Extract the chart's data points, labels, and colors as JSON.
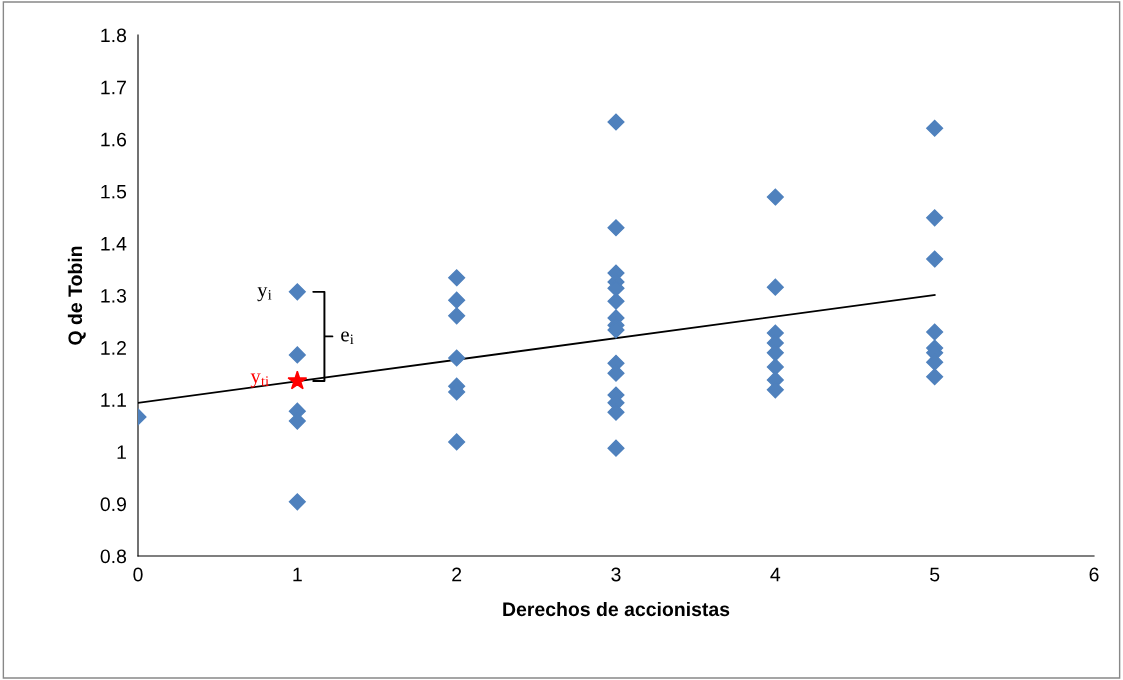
{
  "chart_data": {
    "type": "scatter",
    "xlabel": "Derechos de accionistas",
    "ylabel": "Q de Tobin",
    "xlim": [
      0,
      6
    ],
    "xticks": [
      0,
      1,
      2,
      3,
      4,
      5,
      6
    ],
    "ylim": [
      0.8,
      1.8
    ],
    "yticks": [
      0.8,
      0.9,
      1,
      1.1,
      1.2,
      1.3,
      1.4,
      1.5,
      1.6,
      1.7,
      1.8
    ],
    "grid": false,
    "legend": false,
    "series": [
      {
        "marker": "diamond",
        "color": "#4f81bd",
        "x": [
          0,
          1,
          1,
          1,
          1,
          1,
          2,
          2,
          2,
          2,
          2,
          2,
          2,
          3,
          3,
          3,
          3,
          3,
          3,
          3,
          3,
          3,
          3,
          3,
          3,
          3,
          3,
          3,
          4,
          4,
          4,
          4,
          4,
          4,
          4,
          4,
          5,
          5,
          5,
          5,
          5,
          5,
          5,
          5
        ],
        "values": [
          1.067,
          1.307,
          1.186,
          1.078,
          1.059,
          0.904,
          1.334,
          1.291,
          1.261,
          1.18,
          1.126,
          1.115,
          1.019,
          1.633,
          1.43,
          1.343,
          1.326,
          1.314,
          1.289,
          1.257,
          1.243,
          1.234,
          1.17,
          1.151,
          1.109,
          1.094,
          1.076,
          1.007,
          1.489,
          1.316,
          1.228,
          1.209,
          1.19,
          1.163,
          1.138,
          1.119,
          1.621,
          1.449,
          1.37,
          1.23,
          1.199,
          1.19,
          1.172,
          1.144
        ]
      },
      {
        "type": "line",
        "marker": "none",
        "line_style": "solid",
        "color": "#000000",
        "x": [
          0,
          5
        ],
        "values": [
          1.094,
          1.301
        ]
      },
      {
        "type": "scatter",
        "marker": "star",
        "color": "#ff0000",
        "x": [
          1
        ],
        "values": [
          1.136
        ]
      }
    ],
    "annotations": [
      "y$_{i}$",
      {
        "text": "e$_{i}$",
        "x": 1,
        "y": 1.136
      },
      "y$_{ti}$"
    ]
  }
}
